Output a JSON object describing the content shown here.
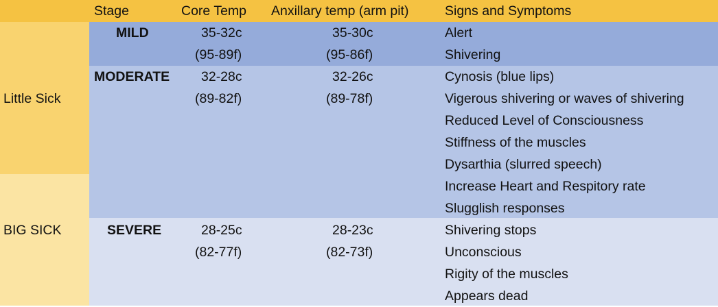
{
  "colors": {
    "header_bg": "#F5C242",
    "little_sick_bg": "#F9D36F",
    "big_sick_bg": "#FBE4A3",
    "mild_bg": "#95ABDA",
    "moderate_bg": "#B5C5E6",
    "severe_bg": "#D9E0F1"
  },
  "header": {
    "stage": "Stage",
    "core_temp": "Core Temp",
    "axillary_temp": "Anxillary temp (arm pit)",
    "signs": "Signs and Symptoms"
  },
  "groups": {
    "little_sick": "Little Sick",
    "big_sick": "BIG SICK"
  },
  "rows": [
    {
      "stage": "MILD",
      "core": [
        "35-32c",
        "(95-89f)"
      ],
      "axillary": [
        "35-30c",
        "(95-86f)"
      ],
      "signs": [
        "Alert",
        "Shivering"
      ]
    },
    {
      "stage": "MODERATE",
      "core": [
        "32-28c",
        "(89-82f)"
      ],
      "axillary": [
        "32-26c",
        "(89-78f)"
      ],
      "signs": [
        "Cynosis (blue lips)",
        "Vigerous shivering or waves of shivering",
        "Reduced Level of Consciousness",
        "Stiffness of the muscles",
        "Dysarthia (slurred speech)",
        "Increase Heart and Respitory rate",
        "Slugglish responses"
      ]
    },
    {
      "stage": "SEVERE",
      "core": [
        "28-25c",
        "(82-77f)"
      ],
      "axillary": [
        "28-23c",
        "(82-73f)"
      ],
      "signs": [
        "Shivering stops",
        "Unconscious",
        "Rigity of the muscles",
        "Appears dead"
      ]
    }
  ]
}
